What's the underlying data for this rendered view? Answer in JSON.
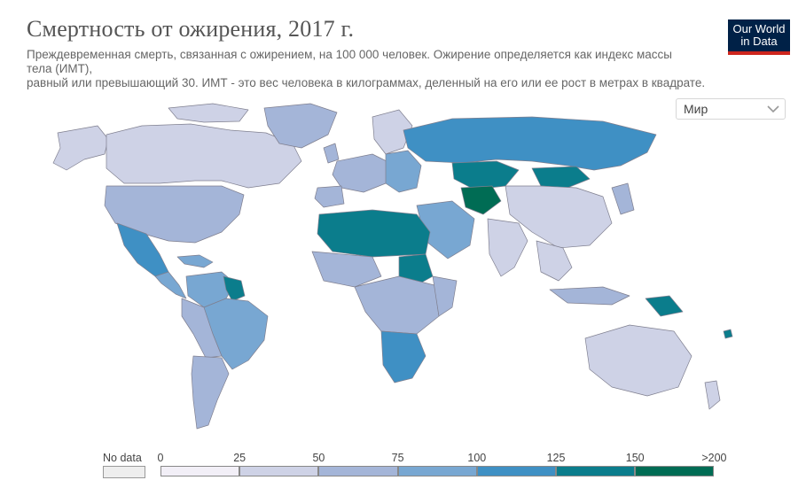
{
  "header": {
    "title": "Смертность от ожирения, 2017 г.",
    "subtitle_lines": [
      "Преждевременная смерть, связанная с ожирением, на 100 000 человек. Ожирение определяется как индекс массы",
      "тела (ИМТ),",
      "равный или превышающий 30. ИМТ - это вес человека в килограммах, деленный на его или ее рост в метрах в квадрате."
    ]
  },
  "logo": {
    "line1": "Our World",
    "line2": "in Data",
    "bg": "#002147",
    "accent": "#ce261e"
  },
  "region_select": {
    "value": "Мир",
    "icon": "chevron-down-icon"
  },
  "legend": {
    "no_data_label": "No data",
    "no_data_color": "#eeeeee",
    "thresholds": [
      "0",
      "25",
      "50",
      "75",
      "100",
      "125",
      "150",
      ">200"
    ],
    "colors": [
      "#f2eff7",
      "#ced2e6",
      "#a4b5d8",
      "#78a7d2",
      "#3f90c4",
      "#0b7d8c",
      "#006c54"
    ]
  }
}
